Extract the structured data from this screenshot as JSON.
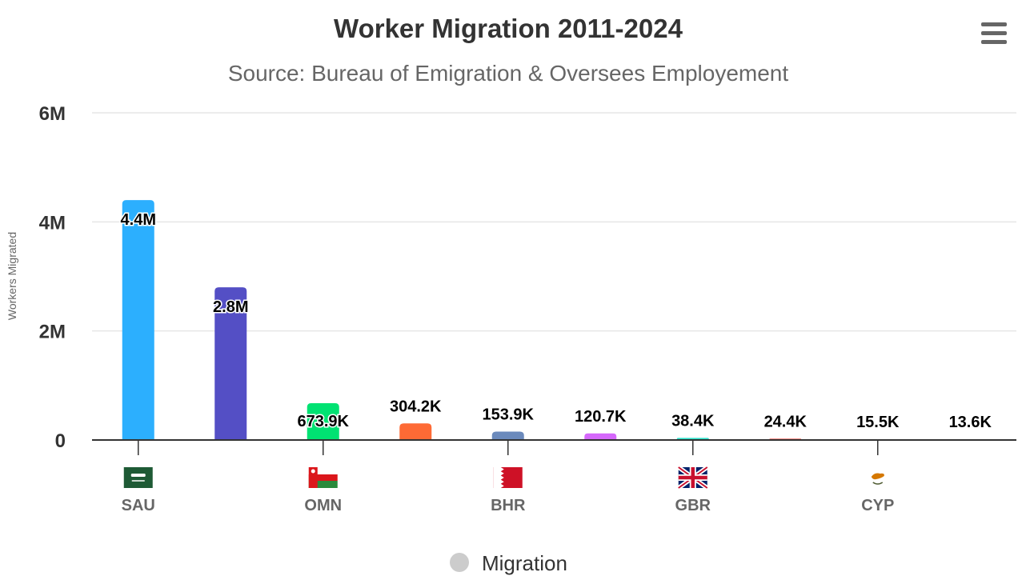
{
  "menu": {
    "icon": "hamburger-menu-icon"
  },
  "chart_data": {
    "type": "bar",
    "title": "Worker Migration 2011-2024",
    "subtitle": "Source: Bureau of Emigration & Oversees Employement",
    "ylabel": "Workers Migrated",
    "ylim": [
      0,
      6000000
    ],
    "yticks": [
      0,
      2000000,
      4000000,
      6000000
    ],
    "ytick_labels": [
      "0",
      "2M",
      "4M",
      "6M"
    ],
    "categories": [
      "SAU",
      "",
      "OMN",
      "",
      "BHR",
      "",
      "GBR",
      "",
      "CYP",
      ""
    ],
    "flags": [
      "saudi-arabia-flag-icon",
      "",
      "oman-flag-icon",
      "",
      "bahrain-flag-icon",
      "",
      "united-kingdom-flag-icon",
      "",
      "cyprus-flag-icon",
      ""
    ],
    "grid": true,
    "legend": {
      "position": "bottom-center"
    },
    "series": [
      {
        "name": "Migration",
        "values": [
          4400000,
          2800000,
          673900,
          304200,
          153900,
          120700,
          38400,
          24400,
          15500,
          13600
        ],
        "labels": [
          "4.4M",
          "2.8M",
          "673.9K",
          "304.2K",
          "153.9K",
          "120.7K",
          "38.4K",
          "24.4K",
          "15.5K",
          "13.6K"
        ],
        "colors": [
          "#2caffe",
          "#544fc5",
          "#00e272",
          "#fe6a35",
          "#6b8abc",
          "#d568fb",
          "#2ee0ca",
          "#fa4b42",
          "#feb56a",
          "#91e8e1"
        ]
      }
    ]
  }
}
